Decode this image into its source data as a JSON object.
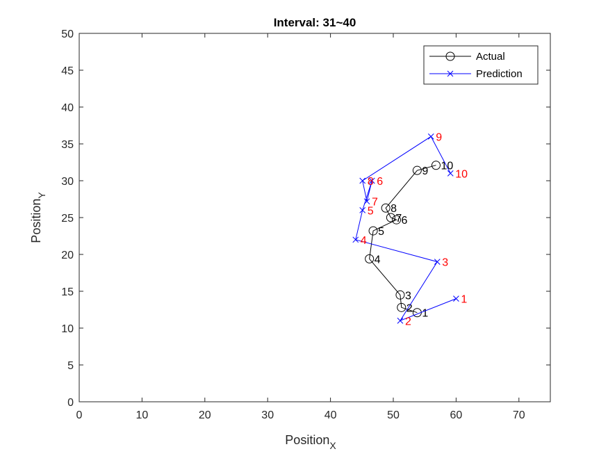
{
  "chart_data": {
    "type": "line",
    "title": "Interval: 31~40",
    "xlabel": "Position",
    "xlabel_sub": "X",
    "ylabel": "Position",
    "ylabel_sub": "Y",
    "xlim": [
      0,
      75
    ],
    "ylim": [
      0,
      50
    ],
    "xticks": [
      0,
      10,
      20,
      30,
      40,
      50,
      60,
      70
    ],
    "yticks": [
      0,
      5,
      10,
      15,
      20,
      25,
      30,
      35,
      40,
      45,
      50
    ],
    "grid": false,
    "legend_position": "top-right",
    "series": [
      {
        "name": "Actual",
        "color": "#000000",
        "marker": "circle",
        "point_labels": [
          "1",
          "2",
          "3",
          "4",
          "5",
          "6",
          "7",
          "8",
          "9",
          "10"
        ],
        "x": [
          53.8,
          51.3,
          51.1,
          46.2,
          46.8,
          50.5,
          49.6,
          48.8,
          53.8,
          56.8
        ],
        "y": [
          12.1,
          12.8,
          14.5,
          19.4,
          23.2,
          24.7,
          25.0,
          26.3,
          31.4,
          32.1
        ]
      },
      {
        "name": "Prediction",
        "color": "#0000ff",
        "label_color": "#ff0000",
        "marker": "x",
        "point_labels": [
          "1",
          "2",
          "3",
          "4",
          "5",
          "6",
          "7",
          "8",
          "9",
          "10"
        ],
        "x": [
          60.0,
          51.1,
          57.0,
          44.0,
          45.1,
          46.6,
          45.8,
          45.1,
          56.0,
          59.1
        ],
        "y": [
          14.0,
          11.0,
          19.0,
          22.0,
          26.0,
          30.0,
          27.2,
          30.0,
          36.0,
          31.0
        ]
      }
    ]
  }
}
